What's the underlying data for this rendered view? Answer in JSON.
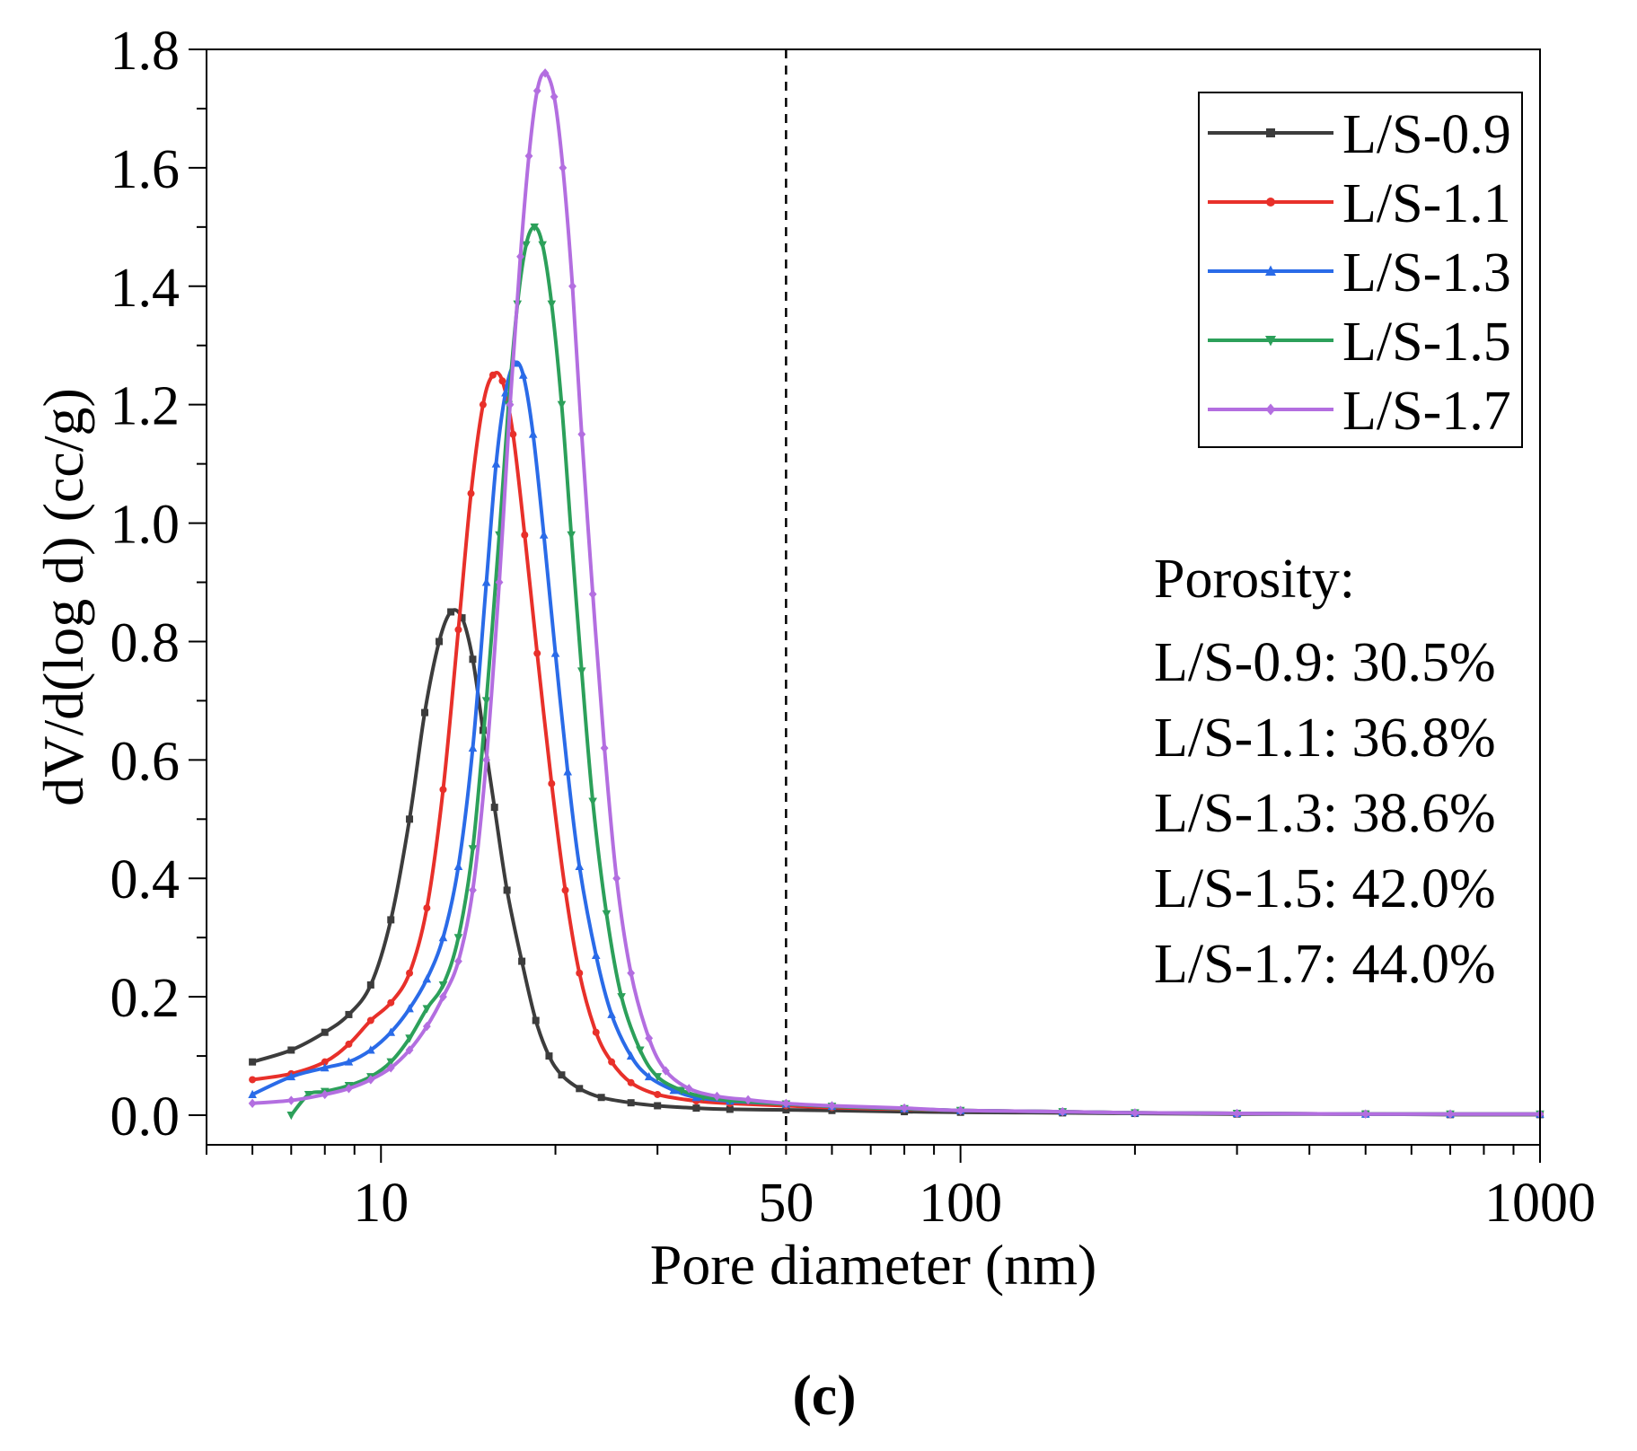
{
  "chart_data": {
    "type": "line",
    "xlabel": "Pore diameter (nm)",
    "ylabel": "dV/d(log d) (cc/g)",
    "xscale": "log",
    "xlim": [
      5,
      1000
    ],
    "ylim": [
      -0.05,
      1.8
    ],
    "xticks": [
      10,
      50,
      100,
      1000
    ],
    "xtick_labels": [
      "10",
      "50",
      "100",
      "1000"
    ],
    "yticks": [
      0.0,
      0.2,
      0.4,
      0.6,
      0.8,
      1.0,
      1.2,
      1.4,
      1.6,
      1.8
    ],
    "ytick_labels": [
      "0.0",
      "0.2",
      "0.4",
      "0.6",
      "0.8",
      "1.0",
      "1.2",
      "1.4",
      "1.6",
      "1.8"
    ],
    "reference_line_x": 50,
    "legend_position": "top-right",
    "series": [
      {
        "name": "L/S-0.9",
        "color": "#3c3c3c",
        "marker": "square",
        "x": [
          6,
          7,
          8,
          8.8,
          9.6,
          10.4,
          11.2,
          11.9,
          12.6,
          13.2,
          13.8,
          14.4,
          15,
          15.7,
          16.5,
          17.5,
          18.5,
          19.5,
          20.5,
          22,
          24,
          27,
          30,
          35,
          40,
          50,
          60,
          80,
          100,
          150,
          200,
          300,
          500,
          700,
          1000
        ],
        "y": [
          0.09,
          0.11,
          0.14,
          0.17,
          0.22,
          0.33,
          0.5,
          0.68,
          0.8,
          0.85,
          0.84,
          0.77,
          0.65,
          0.52,
          0.38,
          0.26,
          0.16,
          0.1,
          0.068,
          0.045,
          0.03,
          0.021,
          0.016,
          0.012,
          0.01,
          0.009,
          0.008,
          0.006,
          0.005,
          0.004,
          0.003,
          0.002,
          0.002,
          0.001,
          0.001
        ]
      },
      {
        "name": "L/S-1.1",
        "color": "#e8302a",
        "marker": "circle",
        "x": [
          6,
          7,
          8,
          8.8,
          9.6,
          10.4,
          11.2,
          12,
          12.8,
          13.6,
          14.3,
          15,
          15.6,
          16.2,
          16.9,
          17.7,
          18.6,
          19.7,
          20.8,
          22,
          23.5,
          25,
          27,
          30,
          35,
          40,
          50,
          60,
          80,
          100,
          150,
          200,
          300,
          500,
          700,
          1000
        ],
        "y": [
          0.06,
          0.07,
          0.09,
          0.12,
          0.16,
          0.19,
          0.24,
          0.35,
          0.55,
          0.82,
          1.05,
          1.2,
          1.25,
          1.24,
          1.15,
          0.98,
          0.78,
          0.56,
          0.38,
          0.24,
          0.14,
          0.09,
          0.055,
          0.035,
          0.024,
          0.02,
          0.016,
          0.013,
          0.01,
          0.008,
          0.006,
          0.004,
          0.003,
          0.002,
          0.002,
          0.002
        ]
      },
      {
        "name": "L/S-1.3",
        "color": "#2a6be8",
        "marker": "triangle-up",
        "x": [
          6,
          7,
          8,
          8.8,
          9.6,
          10.4,
          11.2,
          12,
          12.8,
          13.6,
          14.4,
          15.2,
          15.8,
          16.4,
          17,
          17.6,
          18.3,
          19.1,
          20,
          21,
          22,
          23.5,
          25,
          27,
          29,
          32,
          35,
          40,
          50,
          60,
          80,
          100,
          150,
          200,
          300,
          500,
          700,
          1000
        ],
        "y": [
          0.035,
          0.065,
          0.08,
          0.09,
          0.11,
          0.14,
          0.18,
          0.23,
          0.3,
          0.42,
          0.62,
          0.9,
          1.1,
          1.22,
          1.27,
          1.25,
          1.15,
          0.98,
          0.78,
          0.58,
          0.42,
          0.27,
          0.17,
          0.1,
          0.065,
          0.042,
          0.03,
          0.024,
          0.019,
          0.015,
          0.011,
          0.008,
          0.006,
          0.004,
          0.003,
          0.002,
          0.002,
          0.002
        ]
      },
      {
        "name": "L/S-1.5",
        "color": "#2ca05a",
        "marker": "triangle-down",
        "x": [
          7,
          7.5,
          8,
          8.8,
          9.6,
          10.4,
          11.2,
          12,
          12.8,
          13.6,
          14.4,
          15.2,
          16,
          16.6,
          17.2,
          17.8,
          18.4,
          19,
          19.7,
          20.5,
          21.3,
          22.2,
          23.2,
          24.5,
          26,
          28,
          30,
          33,
          36,
          40,
          50,
          60,
          80,
          100,
          150,
          200,
          300,
          500,
          700,
          1000
        ],
        "y": [
          0.0,
          0.035,
          0.04,
          0.05,
          0.065,
          0.09,
          0.13,
          0.18,
          0.22,
          0.3,
          0.45,
          0.7,
          0.98,
          1.2,
          1.37,
          1.47,
          1.5,
          1.47,
          1.37,
          1.2,
          0.98,
          0.75,
          0.53,
          0.34,
          0.2,
          0.11,
          0.065,
          0.042,
          0.031,
          0.025,
          0.019,
          0.015,
          0.011,
          0.008,
          0.006,
          0.004,
          0.003,
          0.002,
          0.002,
          0.002
        ]
      },
      {
        "name": "L/S-1.7",
        "color": "#b36ee0",
        "marker": "diamond",
        "x": [
          6,
          7,
          8,
          8.8,
          9.6,
          10.4,
          11.2,
          12,
          12.8,
          13.6,
          14.4,
          15.2,
          16,
          16.7,
          17.4,
          18,
          18.6,
          19.2,
          19.9,
          20.6,
          21.4,
          22.2,
          23.2,
          24.3,
          25.5,
          27,
          29,
          31,
          34,
          38,
          43,
          50,
          60,
          80,
          100,
          150,
          200,
          300,
          500,
          700,
          1000
        ],
        "y": [
          0.02,
          0.025,
          0.035,
          0.045,
          0.06,
          0.08,
          0.11,
          0.15,
          0.2,
          0.26,
          0.38,
          0.6,
          0.9,
          1.2,
          1.45,
          1.62,
          1.73,
          1.76,
          1.72,
          1.6,
          1.4,
          1.15,
          0.88,
          0.62,
          0.4,
          0.24,
          0.13,
          0.075,
          0.045,
          0.032,
          0.026,
          0.02,
          0.016,
          0.012,
          0.008,
          0.006,
          0.004,
          0.003,
          0.002,
          0.002,
          0.002
        ]
      }
    ],
    "annotations": {
      "title": "Porosity:",
      "lines": [
        "L/S-0.9: 30.5%",
        "L/S-1.1: 36.8%",
        "L/S-1.3: 38.6%",
        "L/S-1.5: 42.0%",
        "L/S-1.7: 44.0%"
      ]
    },
    "panel_label": "(c)"
  }
}
